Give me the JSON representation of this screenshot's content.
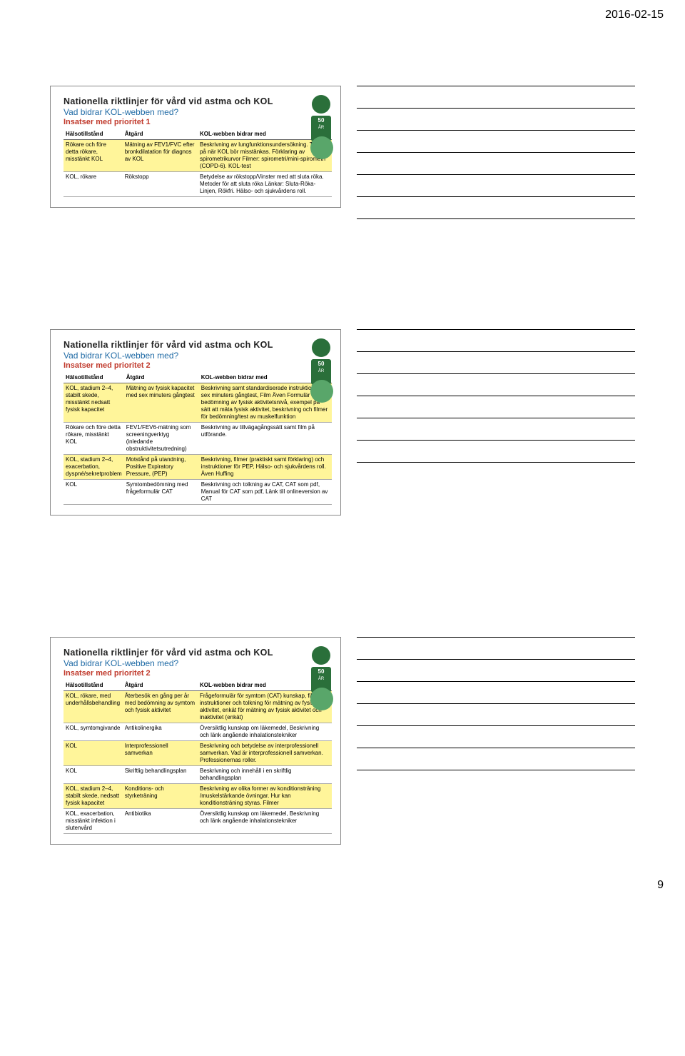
{
  "date": "2016-02-15",
  "page_num": "9",
  "badge_text": "50",
  "colors": {
    "highlight": "#fff59a",
    "title_blue": "#1f6aa5",
    "insats_red": "#c0392b",
    "badge_green": "#2a6f3a"
  },
  "slides": [
    {
      "title": "Nationella riktlinjer för vård vid astma och KOL",
      "subtitle": "Vad bidrar KOL-webben med?",
      "insatser": "Insatser med prioritet 1",
      "headers": [
        "Hälsotillstånd",
        "Åtgärd",
        "KOL-webben bidrar med"
      ],
      "rows": [
        {
          "hl": true,
          "c": [
            "Rökare och före detta rökare, misstänkt KOL",
            "Mätning av FEV1/FVC efter bronkdilatation för diagnos av KOL",
            "Beskrivning av lungfunktionsundersökning. Tecken på när KOL bör misstänkas. Förklaring av spirometrikurvor Filmer: spirometri/mini-spirometri (COPD-6). KOL-test"
          ]
        },
        {
          "hl": false,
          "c": [
            "KOL, rökare",
            "Rökstopp",
            "Betydelse av rökstopp/Vinster med att sluta röka. Metoder för att sluta röka Länkar: Sluta-Röka-Linjen, Rökfri. Hälso- och sjukvårdens roll."
          ]
        }
      ]
    },
    {
      "title": "Nationella riktlinjer för vård vid astma och KOL",
      "subtitle": "Vad bidrar KOL-webben med?",
      "insatser": "Insatser med prioritet 2",
      "headers": [
        "Hälsotillstånd",
        "Åtgärd",
        "KOL-webben bidrar med"
      ],
      "rows": [
        {
          "hl": true,
          "c": [
            "KOL, stadium 2–4, stabilt skede, misstänkt nedsatt fysisk kapacitet",
            "Mätning av fysisk kapacitet med sex minuters gångtest",
            "Beskrivning samt standardiserade instruktioner för sex minuters gångtest, Film Även Formulär för bedömning av fysisk aktivitetsnivå, exempel på sätt att mäta fysisk aktivitet, beskrivning och filmer för bedömning/test av muskelfunktion"
          ]
        },
        {
          "hl": false,
          "c": [
            "Rökare och före detta rökare, misstänkt KOL",
            "FEV1/FEV6-mätning som screeningverktyg (inledande obstruktivitetsutredning)",
            "Beskrivning av tillvägagångssätt samt film på utförande."
          ]
        },
        {
          "hl": true,
          "c": [
            "KOL, stadium 2–4, exacerbation, dyspné/sekretproblem",
            "Motstånd på utandning, Positive Expiratory Pressure, (PEP)",
            "Beskrivning, filmer (praktiskt samt förklaring) och instruktioner för PEP, Hälso- och sjukvårdens roll. Även Huffing"
          ]
        },
        {
          "hl": false,
          "c": [
            "KOL",
            "Symtombedömning med frågeformulär CAT",
            "Beskrivning och tolkning av CAT, CAT som pdf, Manual för CAT som pdf, Länk till onlineversion av CAT"
          ]
        }
      ]
    },
    {
      "title": "Nationella riktlinjer för vård vid astma och KOL",
      "subtitle": "Vad bidrar KOL-webben med?",
      "insatser": "Insatser med prioritet 2",
      "headers": [
        "Hälsotillstånd",
        "Åtgärd",
        "KOL-webben bidrar med"
      ],
      "rows": [
        {
          "hl": true,
          "c": [
            "KOL, rökare, med underhållsbehandling",
            "Återbesök en gång per år med bedömning av symtom och fysisk aktivitet",
            "Frågeformulär för symtom (CAT) kunskap, film, instruktioner och tolkning för mätning av fysisk aktivitet, enkät för mätning av fysisk aktivitet och inaktivitet (enkät)"
          ]
        },
        {
          "hl": false,
          "c": [
            "KOL, symtomgivande",
            "Antikolinergika",
            "Översiktlig kunskap om läkemedel, Beskrivning och länk angående inhalationstekniker"
          ]
        },
        {
          "hl": true,
          "c": [
            "KOL",
            "Interprofessionell samverkan",
            "Beskrivning och betydelse av interprofessionell samverkan. Vad är interprofessionell samverkan. Professionernas roller."
          ]
        },
        {
          "hl": false,
          "c": [
            "KOL",
            "Skriftlig behandlingsplan",
            "Beskrivning och innehåll i en skriftlig behandlingsplan"
          ]
        },
        {
          "hl": true,
          "c": [
            "KOL, stadium 2–4, stabilt skede, nedsatt fysisk kapacitet",
            "Konditions- och styrketräning",
            "Beskrivning av olika former av konditionsträning /muskelstärkande övningar. Hur kan konditionsträning styras. Filmer"
          ]
        },
        {
          "hl": false,
          "c": [
            "KOL, exacerbation, misstänkt infektion i slutenvård",
            "Antibiotika",
            "Översiktlig kunskap om läkemedel, Beskrivning och länk angående inhalationstekniker"
          ]
        }
      ]
    }
  ],
  "notes_lines_per_block": 7,
  "notes_blocks": 3
}
